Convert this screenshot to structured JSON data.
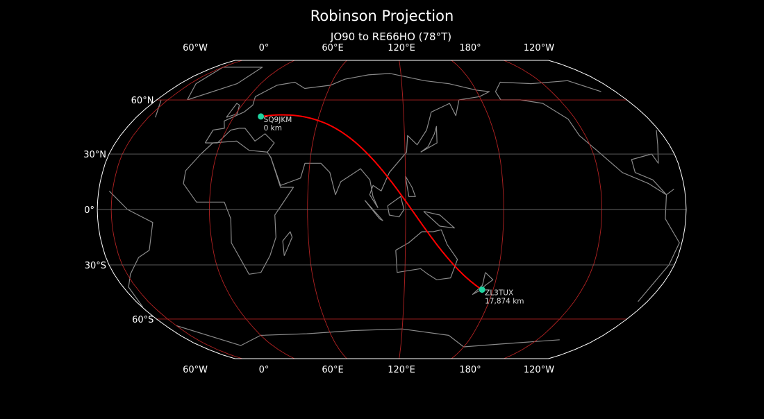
{
  "chart_data": {
    "type": "map",
    "title": "Robinson Projection",
    "subtitle": "JO90 to RE66HO (78°T)",
    "projection": "robinson",
    "central_longitude": 111.5,
    "meridians": [
      -60,
      0,
      60,
      120,
      180,
      -120
    ],
    "meridian_labels": [
      "60°W",
      "0°",
      "60°E",
      "120°E",
      "180°",
      "120°W"
    ],
    "parallels": [
      60,
      30,
      0,
      -30,
      -60
    ],
    "parallel_labels": [
      "60°N",
      "30°N",
      "0°",
      "30°S",
      "60°S"
    ],
    "colors": {
      "background": "#000000",
      "coastline": "#8a8a8a",
      "meridian_grid": "#b22222",
      "parallel_grid_major": "#b22222",
      "parallel_grid_minor": "#666666",
      "outline": "#ffffff",
      "path": "#ff0000",
      "station_marker": "#1fd3a0"
    },
    "path": {
      "type": "great-circle",
      "bearing": "78°T"
    },
    "stations": [
      {
        "call": "SQ9JKM",
        "distance": "0 km",
        "locator": "JO90",
        "lon": 19.0,
        "lat": 50.5
      },
      {
        "call": "ZL3TUX",
        "distance": "17,874 km",
        "locator": "RE66HO",
        "lon": 172.6,
        "lat": -43.4
      }
    ]
  }
}
